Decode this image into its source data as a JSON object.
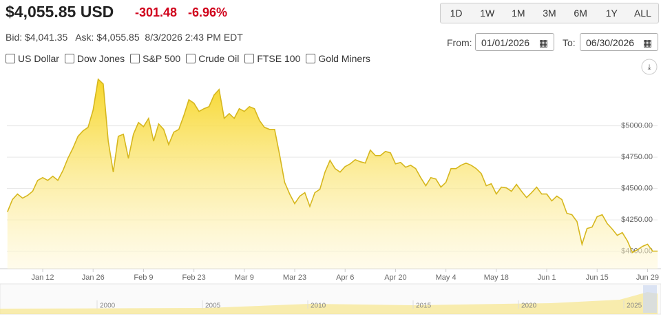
{
  "header": {
    "price": "$4,055.85 USD",
    "change": "-301.48",
    "change_pct": "-6.96%",
    "bid_label": "Bid:",
    "bid": "$4,041.35",
    "ask_label": "Ask:",
    "ask": "$4,055.85",
    "timestamp": "8/3/2026 2:43 PM EDT"
  },
  "range_buttons": [
    "1D",
    "1W",
    "1M",
    "3M",
    "6M",
    "1Y",
    "ALL"
  ],
  "date_range": {
    "from_label": "From:",
    "from": "01/01/2026",
    "to_label": "To:",
    "to": "06/30/2026"
  },
  "compare": [
    "US Dollar",
    "Dow Jones",
    "S&P 500",
    "Crude Oil",
    "FTSE 100",
    "Gold Miners"
  ],
  "chart_data": {
    "type": "area",
    "color": "#d6b71e",
    "fill": "#f7d72a",
    "categories": [
      null,
      null,
      null,
      null,
      null,
      null,
      null,
      "Jan 12",
      null,
      null,
      null,
      null,
      null,
      null,
      null,
      null,
      null,
      "Jan 26",
      null,
      null,
      null,
      null,
      null,
      null,
      null,
      null,
      null,
      "Feb 9",
      null,
      null,
      null,
      null,
      null,
      null,
      null,
      null,
      null,
      "Feb 23",
      null,
      null,
      null,
      null,
      null,
      null,
      null,
      null,
      null,
      "Mar 9",
      null,
      null,
      null,
      null,
      null,
      null,
      null,
      null,
      null,
      "Mar 23",
      null,
      null,
      null,
      null,
      null,
      null,
      null,
      null,
      null,
      "Apr 6",
      null,
      null,
      null,
      null,
      null,
      null,
      null,
      null,
      null,
      "Apr 20",
      null,
      null,
      null,
      null,
      null,
      null,
      null,
      null,
      null,
      "May 4",
      null,
      null,
      null,
      null,
      null,
      null,
      null,
      null,
      null,
      "May 18",
      null,
      null,
      null,
      null,
      null,
      null,
      null,
      null,
      null,
      "Jun 1",
      null,
      null,
      null,
      null,
      null,
      null,
      null,
      null,
      null,
      "Jun 15",
      null,
      null,
      null,
      null,
      null,
      null,
      null,
      null,
      null,
      "Jun 29",
      null,
      null
    ],
    "values": [
      4313,
      4412,
      4456,
      4423,
      4445,
      4478,
      4565,
      4587,
      4565,
      4598,
      4565,
      4642,
      4741,
      4823,
      4917,
      4960,
      4988,
      5125,
      5372,
      5334,
      4878,
      4631,
      4917,
      4933,
      4741,
      4933,
      5027,
      4994,
      5060,
      4878,
      5016,
      4972,
      4851,
      4950,
      4972,
      5082,
      5208,
      5181,
      5115,
      5137,
      5153,
      5246,
      5290,
      5060,
      5098,
      5060,
      5137,
      5115,
      5153,
      5137,
      5043,
      4988,
      4972,
      4972,
      4769,
      4549,
      4456,
      4379,
      4439,
      4467,
      4357,
      4467,
      4494,
      4631,
      4725,
      4659,
      4631,
      4675,
      4697,
      4730,
      4714,
      4703,
      4807,
      4763,
      4763,
      4796,
      4785,
      4697,
      4708,
      4670,
      4686,
      4659,
      4587,
      4522,
      4587,
      4576,
      4511,
      4549,
      4659,
      4659,
      4686,
      4703,
      4686,
      4659,
      4620,
      4522,
      4538,
      4456,
      4511,
      4505,
      4478,
      4533,
      4478,
      4428,
      4467,
      4511,
      4456,
      4456,
      4401,
      4439,
      4412,
      4302,
      4291,
      4236,
      4055,
      4181,
      4192,
      4275,
      4291,
      4220,
      4176,
      4126,
      4148,
      4082,
      3989,
      4011,
      4038,
      4055,
      4000,
      4000
    ],
    "ylim": [
      3860,
      5460
    ],
    "yticks": [
      {
        "value": 4000,
        "label": "$4000.00"
      },
      {
        "value": 4250,
        "label": "$4250.00"
      },
      {
        "value": 4500,
        "label": "$4500.00"
      },
      {
        "value": 4750,
        "label": "$4750.00"
      },
      {
        "value": 5000,
        "label": "$5000.00"
      }
    ],
    "grid": true
  },
  "navigator": {
    "labels": [
      "2000",
      "2005",
      "2010",
      "2015",
      "2020",
      "2025"
    ]
  }
}
